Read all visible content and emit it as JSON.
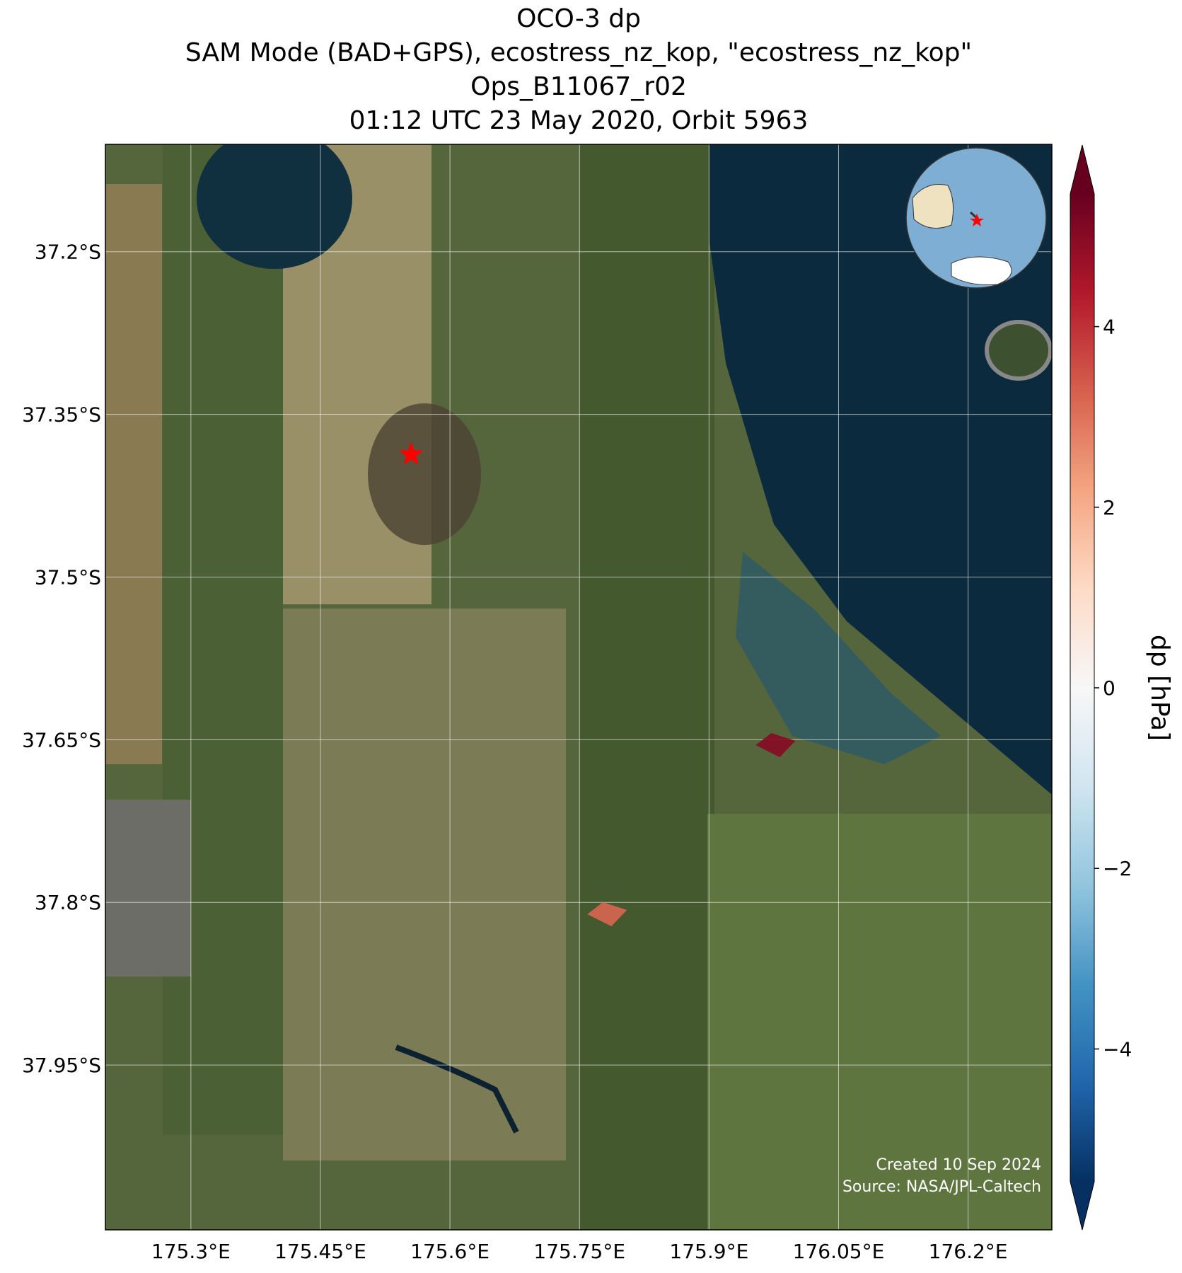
{
  "chart_data": {
    "type": "map",
    "title": [
      "OCO-3 dp",
      "SAM Mode (BAD+GPS), ecostress_nz_kop, \"ecostress_nz_kop\"",
      "Ops_B11067_r02",
      "01:12 UTC 23 May 2020, Orbit 5963"
    ],
    "lon": [
      175.782,
      175.977
    ],
    "lat": [
      -37.811,
      -37.655
    ],
    "values": [
      3.2,
      5.0
    ],
    "target_lon": 175.555,
    "target_lat": -37.387,
    "xlim": [
      175.201,
      176.297
    ],
    "ylim": [
      -38.102,
      -37.101
    ],
    "xticks": [
      {
        "value": 175.3,
        "label": "175.3°E"
      },
      {
        "value": 175.45,
        "label": "175.45°E"
      },
      {
        "value": 175.6,
        "label": "175.6°E"
      },
      {
        "value": 175.75,
        "label": "175.75°E"
      },
      {
        "value": 175.9,
        "label": "175.9°E"
      },
      {
        "value": 176.05,
        "label": "176.05°E"
      },
      {
        "value": 176.2,
        "label": "176.2°E"
      }
    ],
    "yticks": [
      {
        "value": -37.2,
        "label": "37.2°S"
      },
      {
        "value": -37.35,
        "label": "37.35°S"
      },
      {
        "value": -37.5,
        "label": "37.5°S"
      },
      {
        "value": -37.65,
        "label": "37.65°S"
      },
      {
        "value": -37.8,
        "label": "37.8°S"
      },
      {
        "value": -37.95,
        "label": "37.95°S"
      }
    ],
    "grid": true,
    "colormap": "RdBu_r",
    "clim": [
      -5.47,
      5.47
    ],
    "cticks": [
      {
        "value": -4,
        "label": "−4"
      },
      {
        "value": -2,
        "label": "−2"
      },
      0,
      2,
      4
    ],
    "colorbar_label": "dp [hPa]",
    "credits": [
      "Created 10 Sep 2024",
      "Source: NASA/JPL-Caltech"
    ]
  }
}
